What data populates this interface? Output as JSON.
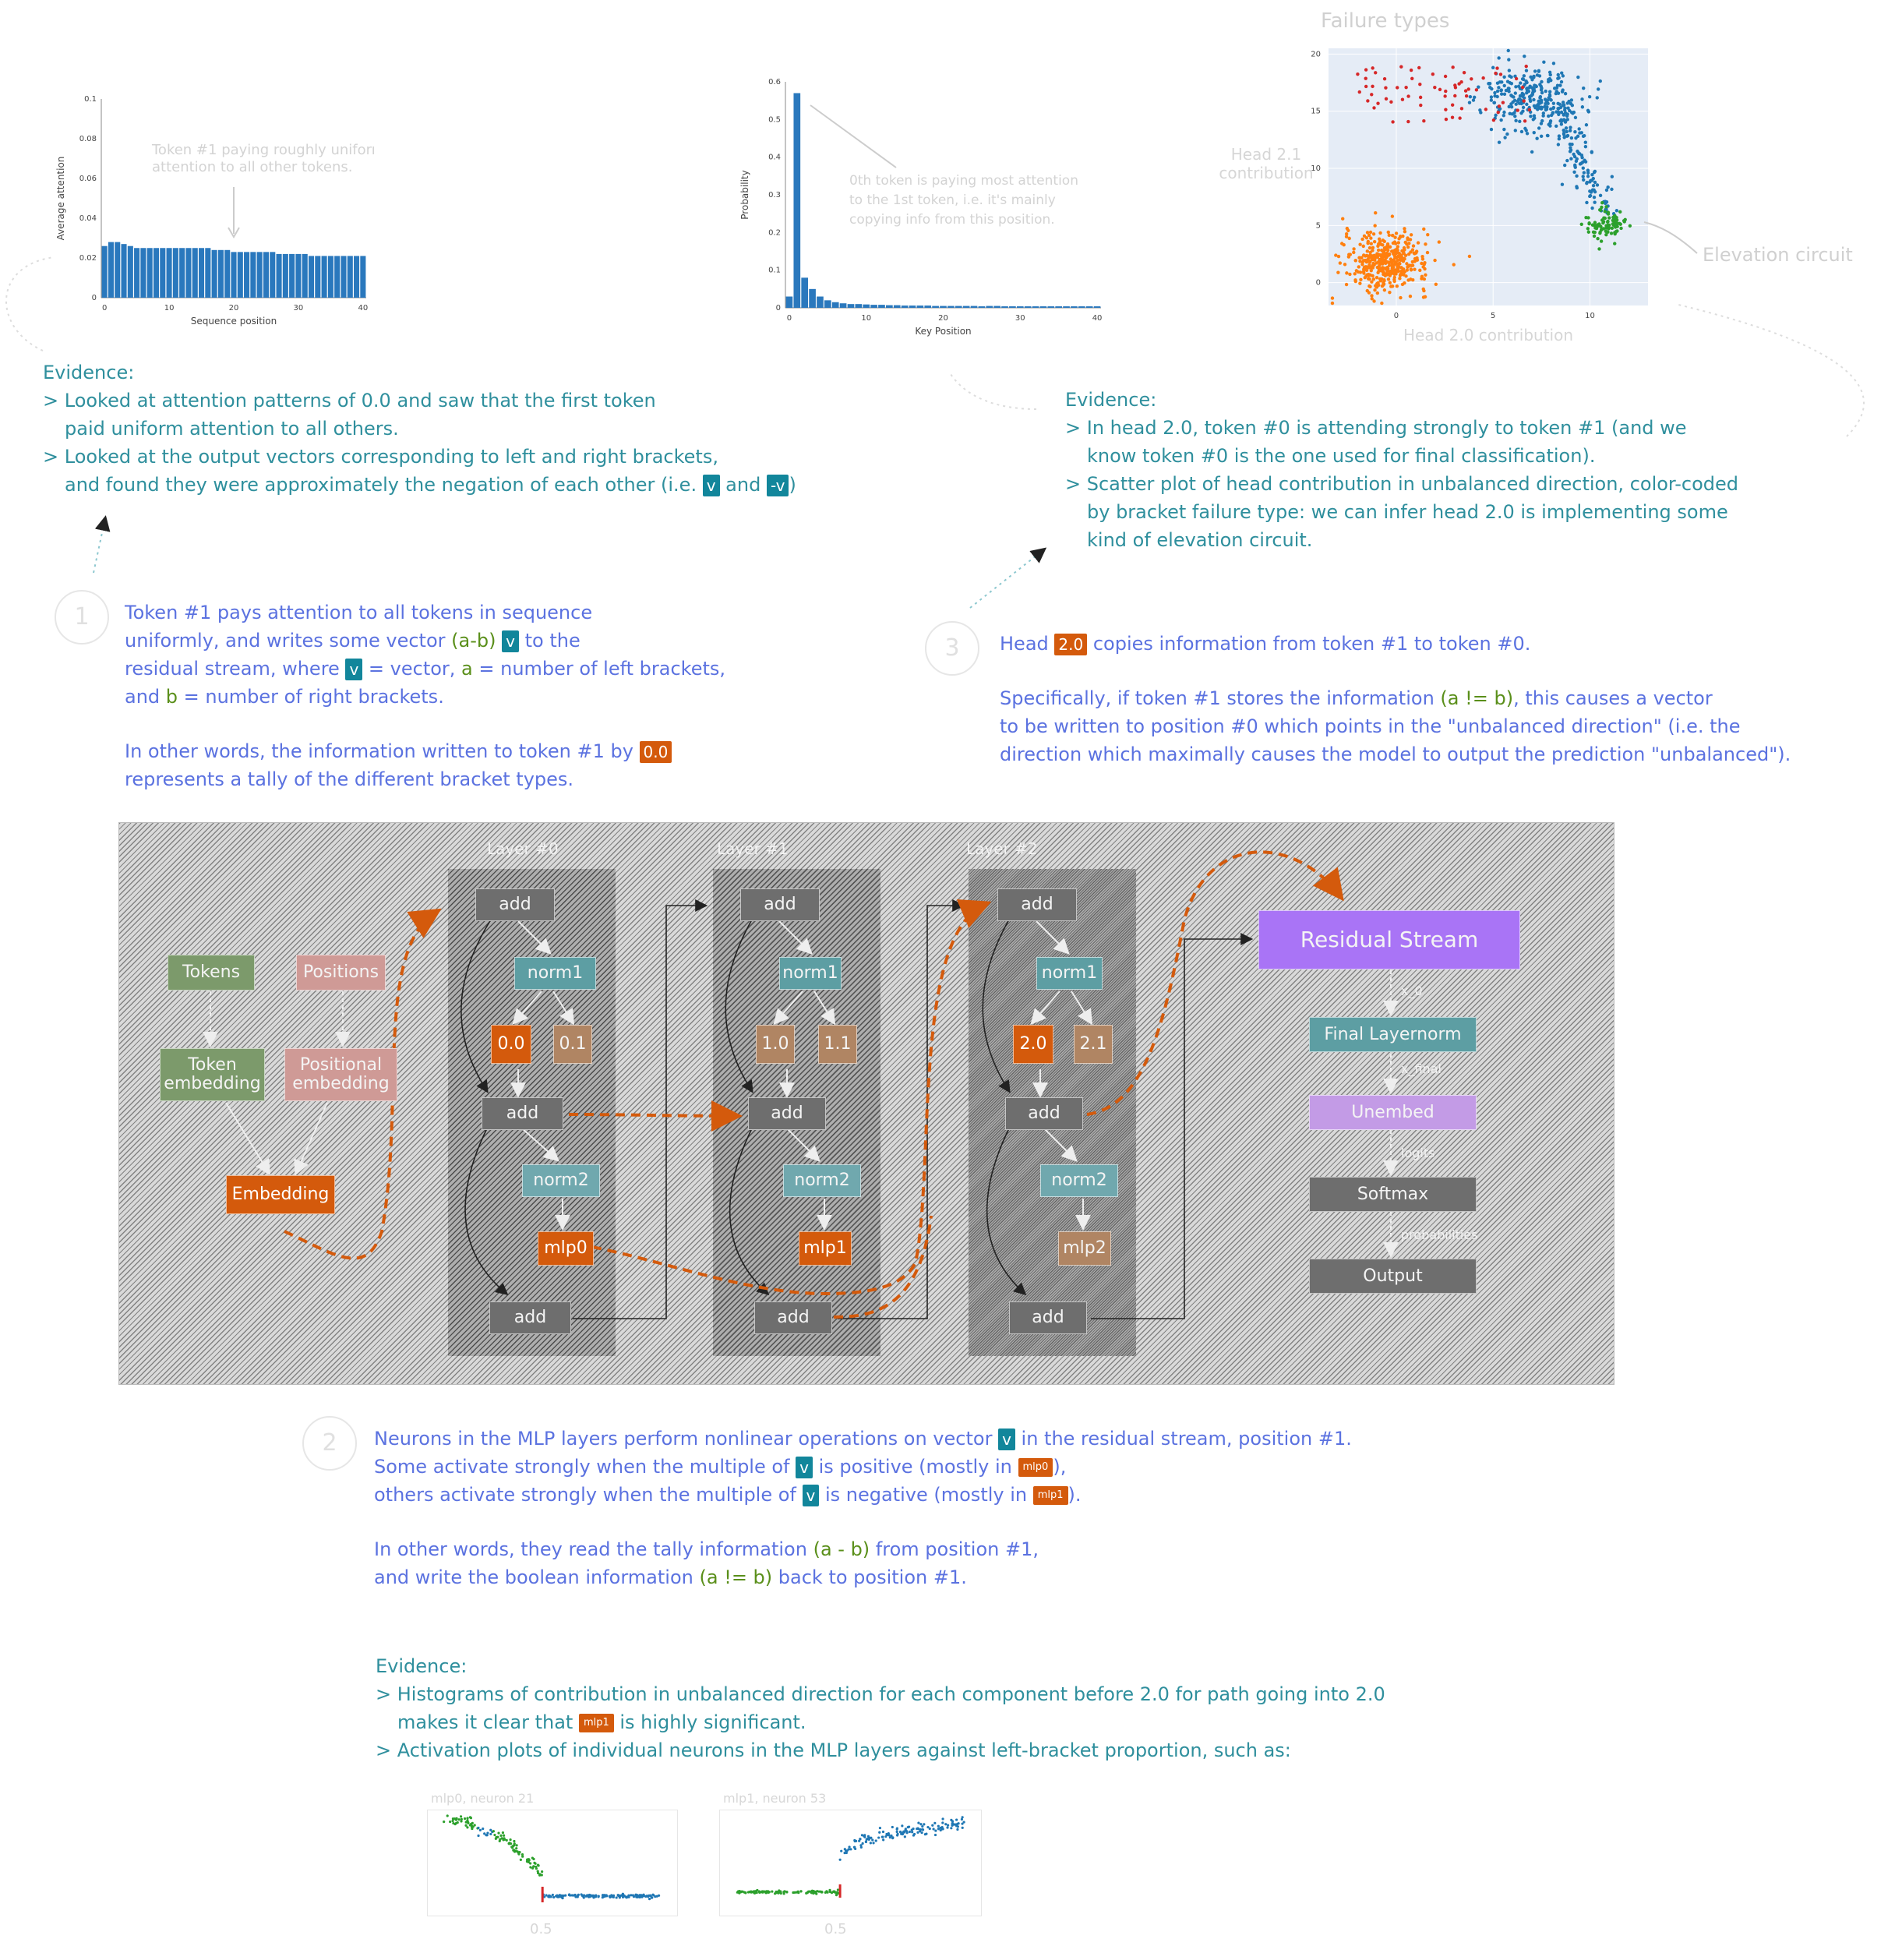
{
  "chart_attention": {
    "type": "bar",
    "xlabel": "Sequence position",
    "ylabel": "Average attention",
    "yticks": [
      "0",
      "0.02",
      "0.04",
      "0.06",
      "0.08",
      "0.1"
    ],
    "xticks": [
      "0",
      "10",
      "20",
      "30",
      "40"
    ],
    "annotation": "Token #1 paying roughly uniform\nattention to all other tokens.",
    "values": [
      0.026,
      0.028,
      0.028,
      0.027,
      0.026,
      0.025,
      0.025,
      0.025,
      0.025,
      0.025,
      0.025,
      0.025,
      0.025,
      0.025,
      0.025,
      0.025,
      0.025,
      0.024,
      0.024,
      0.024,
      0.023,
      0.023,
      0.023,
      0.023,
      0.023,
      0.023,
      0.023,
      0.022,
      0.022,
      0.022,
      0.022,
      0.022,
      0.021,
      0.021,
      0.021,
      0.021,
      0.021,
      0.021,
      0.021,
      0.021,
      0.021
    ]
  },
  "chart_probability": {
    "type": "bar",
    "xlabel": "Key Position",
    "ylabel": "Probability",
    "yticks": [
      "0",
      "0.1",
      "0.2",
      "0.3",
      "0.4",
      "0.5",
      "0.6"
    ],
    "xticks": [
      "0",
      "10",
      "20",
      "30",
      "40"
    ],
    "annotation": "0th token is paying most attention\nto the 1st token, i.e. it's mainly\ncopying info from this position.",
    "values": [
      0.03,
      0.57,
      0.08,
      0.05,
      0.03,
      0.02,
      0.015,
      0.012,
      0.01,
      0.01,
      0.009,
      0.008,
      0.008,
      0.007,
      0.007,
      0.006,
      0.006,
      0.006,
      0.006,
      0.005,
      0.005,
      0.005,
      0.005,
      0.005,
      0.005,
      0.004,
      0.005,
      0.005,
      0.004,
      0.004,
      0.004,
      0.004,
      0.004,
      0.004,
      0.004,
      0.004,
      0.004,
      0.004,
      0.004,
      0.004,
      0.004
    ]
  },
  "chart_scatter": {
    "type": "scatter",
    "title": "Failure types",
    "xlabel": "Head 2.0 contribution",
    "ylabel": "Head 2.1\ncontribution",
    "yticks": [
      "0",
      "5",
      "10",
      "15",
      "20"
    ],
    "xticks": [
      "0",
      "5",
      "10"
    ],
    "annotation": "Elevation circuit",
    "clusters": [
      {
        "color": "#ff7f0e",
        "cx": -0.5,
        "cy": 1.8,
        "sx": 1.1,
        "sy": 1.3,
        "n": 420
      },
      {
        "color": "#1f77b4",
        "cx": 7.0,
        "cy": 16.2,
        "sx": 1.3,
        "sy": 1.5,
        "n": 260
      },
      {
        "color": "#1f77b4",
        "cx": 9.5,
        "cy": 10.5,
        "sx": 1.0,
        "sy": 2.8,
        "n": 140
      },
      {
        "color": "#d62728",
        "cx": 2.0,
        "cy": 16.5,
        "sx": 2.8,
        "sy": 1.6,
        "n": 70
      },
      {
        "color": "#2ca02c",
        "cx": 10.8,
        "cy": 5.0,
        "sx": 0.5,
        "sy": 0.7,
        "n": 90
      }
    ]
  },
  "evidence_1": {
    "heading": "Evidence:",
    "line1": "> Looked at attention patterns of 0.0 and saw that the first token",
    "line2": "paid uniform attention to all others.",
    "line3": "> Looked at the output vectors corresponding to left and right brackets,",
    "line4a": "and found they were approximately the negation of each other (i.e. ",
    "tag_v": "v",
    "line4b": " and ",
    "tag_negv": "-v",
    "line4c": ")"
  },
  "evidence_3": {
    "heading": "Evidence:",
    "line1": "> In head 2.0, token #0 is attending strongly to token #1 (and we",
    "line2": "know token #0 is the one used for final classification).",
    "line3": "> Scatter plot of head contribution in unbalanced direction, color-coded",
    "line4": "by bracket failure type: we can infer head 2.0 is implementing some",
    "line5": "kind of elevation circuit."
  },
  "step1": {
    "number": "1",
    "p1a": "Token #1 pays attention to all tokens in sequence",
    "p1b": "uniformly, and writes some vector ",
    "p1b_g": "(a-b)",
    "tag_v": "v",
    "p1c": " to the",
    "p1d": "residual stream, where ",
    "p1e": " = vector, ",
    "a_lbl": "a",
    "p1f": " = number of left brackets,",
    "p1g": "and ",
    "b_lbl": "b",
    "p1h": " = number of right brackets.",
    "p2a": "In other words, the information written to token #1 by ",
    "tag_00": "0.0",
    "p2b": "represents a tally of the different bracket types."
  },
  "step3": {
    "number": "3",
    "p1a": "Head ",
    "tag_20": "2.0",
    "p1b": " copies information from token #1 to token #0.",
    "p2a": "Specifically, if token #1 stores the information ",
    "p2_g": "(a != b)",
    "p2b": ", this causes a vector",
    "p3": "to be written to position #0 which points in the \"unbalanced direction\" (i.e. the",
    "p4": "direction which maximally causes the model to output the prediction \"unbalanced\")."
  },
  "step2": {
    "number": "2",
    "p1a": "Neurons in the MLP layers perform nonlinear operations on vector ",
    "tag_v": "v",
    "p1b": " in the residual stream, position #1.",
    "p2a": "Some activate strongly when the multiple of ",
    "p2b": " is positive (mostly in ",
    "tag_mlp0": "mlp0",
    "p2c": "),",
    "p3a": "others activate strongly when the multiple of ",
    "p3b": " is negative (mostly in ",
    "tag_mlp1": "mlp1",
    "p3c": ").",
    "p4a": "In other words, they read the tally information ",
    "p4_g": "(a - b)",
    "p4b": " from position #1,",
    "p5a": "and write the boolean information ",
    "p5_g": "(a != b)",
    "p5b": " back to position #1."
  },
  "evidence_2": {
    "heading": "Evidence:",
    "line1": "> Histograms of contribution in unbalanced direction for each component before 2.0 for path going into 2.0",
    "line2a": "makes it clear that ",
    "tag_mlp1": "mlp1",
    "line2b": " is highly significant.",
    "line3": "> Activation plots of individual neurons in the MLP layers against left-bracket proportion, such as:"
  },
  "mini_plots": [
    {
      "title": "mlp0, neuron 21",
      "xtick": "0.5"
    },
    {
      "title": "mlp1, neuron 53",
      "xtick": "0.5"
    }
  ],
  "diagram": {
    "layers": [
      "Layer #0",
      "Layer #1",
      "Layer #2"
    ],
    "tokens": "Tokens",
    "positions": "Positions",
    "token_embedding": "Token\nembedding",
    "positional_embedding": "Positional\nembedding",
    "embedding": "Embedding",
    "add": "add",
    "norm1": "norm1",
    "norm2": "norm2",
    "heads": [
      [
        "0.0",
        "0.1"
      ],
      [
        "1.0",
        "1.1"
      ],
      [
        "2.0",
        "2.1"
      ]
    ],
    "mlps": [
      "mlp0",
      "mlp1",
      "mlp2"
    ],
    "residual_stream": "Residual Stream",
    "final_layernorm": "Final Layernorm",
    "unembed": "Unembed",
    "softmax": "Softmax",
    "output": "Output",
    "edge_labels": [
      "x_0",
      "x_final",
      "logits",
      "probabilities"
    ]
  }
}
